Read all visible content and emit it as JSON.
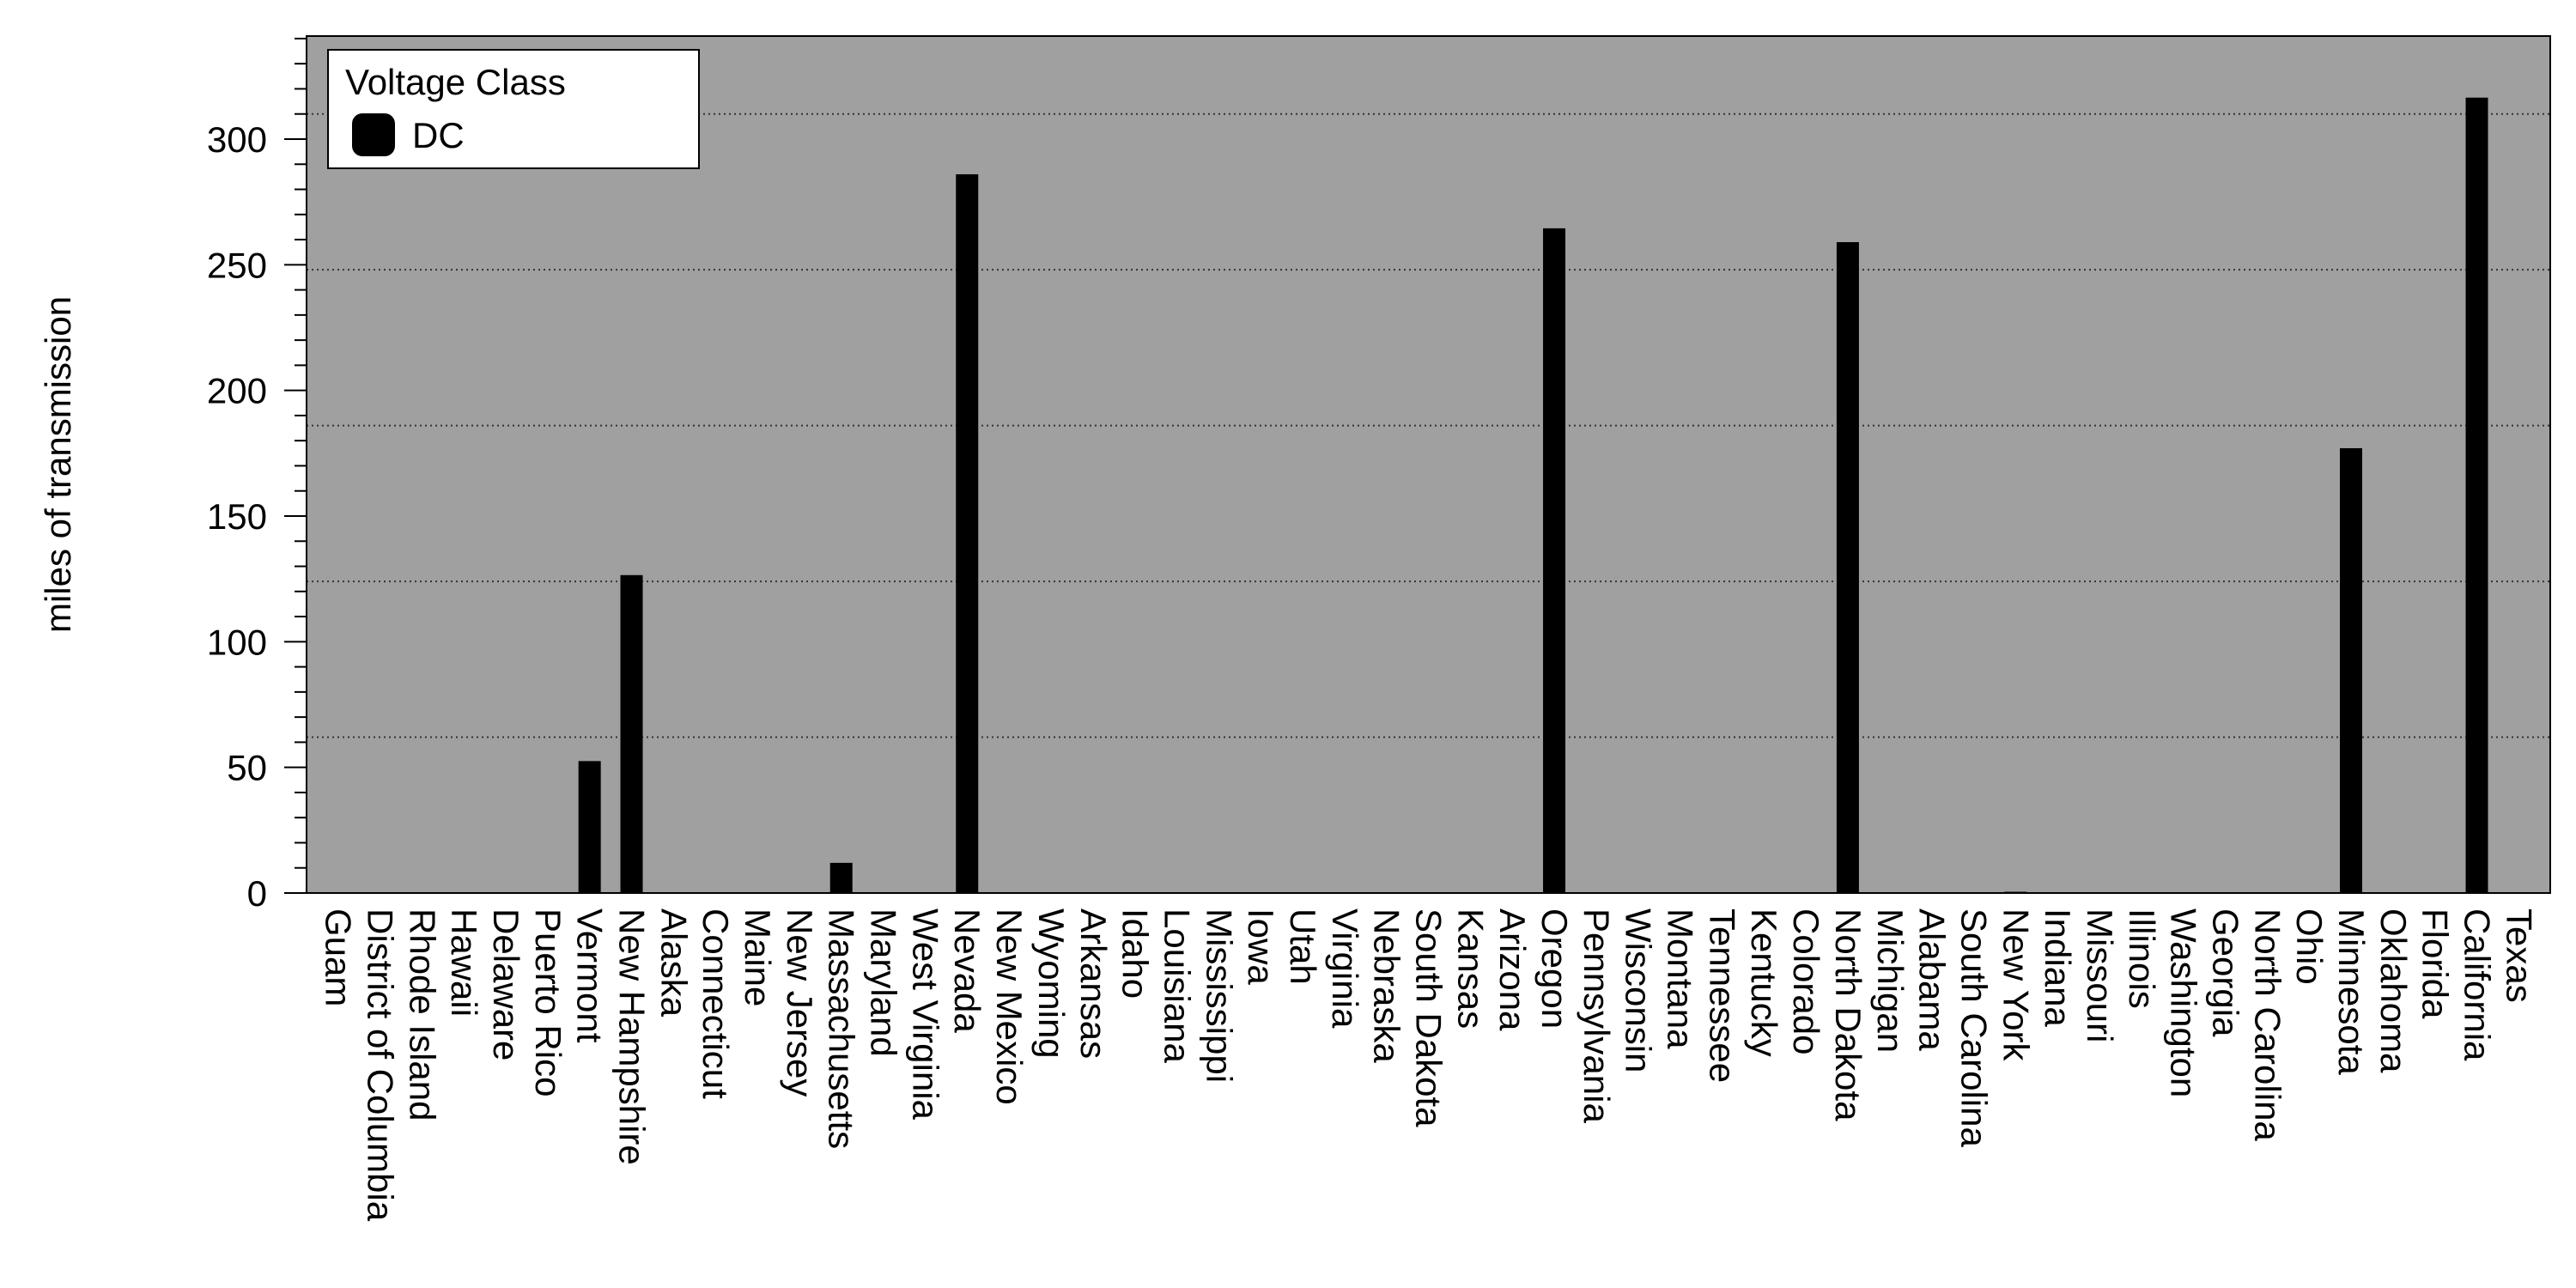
{
  "chart_data": {
    "type": "bar",
    "title": "",
    "xlabel": "",
    "ylabel": "miles of transmission",
    "ylim": [
      0,
      341
    ],
    "yticks": [
      0,
      50,
      100,
      150,
      200,
      250,
      300
    ],
    "grid": "horizontal dotted",
    "legend": {
      "title": "Voltage Class",
      "position": "top-left",
      "entries": [
        "DC"
      ]
    },
    "categories": [
      "Guam",
      "District of Columbia",
      "Rhode Island",
      "Hawaii",
      "Delaware",
      "Puerto Rico",
      "Vermont",
      "New Hampshire",
      "Alaska",
      "Connecticut",
      "Maine",
      "New Jersey",
      "Massachusetts",
      "Maryland",
      "West Virginia",
      "Nevada",
      "New Mexico",
      "Wyoming",
      "Arkansas",
      "Idaho",
      "Louisiana",
      "Mississippi",
      "Iowa",
      "Utah",
      "Virginia",
      "Nebraska",
      "South Dakota",
      "Kansas",
      "Arizona",
      "Oregon",
      "Pennsylvania",
      "Wisconsin",
      "Montana",
      "Tennessee",
      "Kentucky",
      "Colorado",
      "North Dakota",
      "Michigan",
      "Alabama",
      "South Carolina",
      "New York",
      "Indiana",
      "Missouri",
      "Illinois",
      "Washington",
      "Georgia",
      "North Carolina",
      "Ohio",
      "Minnesota",
      "Oklahoma",
      "Florida",
      "California",
      "Texas"
    ],
    "series": [
      {
        "name": "DC",
        "values": [
          0,
          0,
          0,
          0,
          0,
          0,
          52.5,
          126.5,
          0,
          0,
          0,
          0,
          12,
          0,
          0,
          286,
          0,
          0,
          0,
          0,
          0,
          0,
          0,
          0,
          0,
          0,
          0,
          0,
          0,
          264.5,
          0,
          0,
          0,
          0,
          0,
          0,
          259,
          0,
          0,
          0,
          0.5,
          0,
          0,
          0,
          0,
          0,
          0,
          0,
          177,
          0,
          0,
          316.5,
          0
        ]
      }
    ]
  },
  "colors": {
    "plot_background": "#a0a0a0",
    "bar": "#000000",
    "grid": "#333333",
    "legend_background": "#ffffff"
  }
}
